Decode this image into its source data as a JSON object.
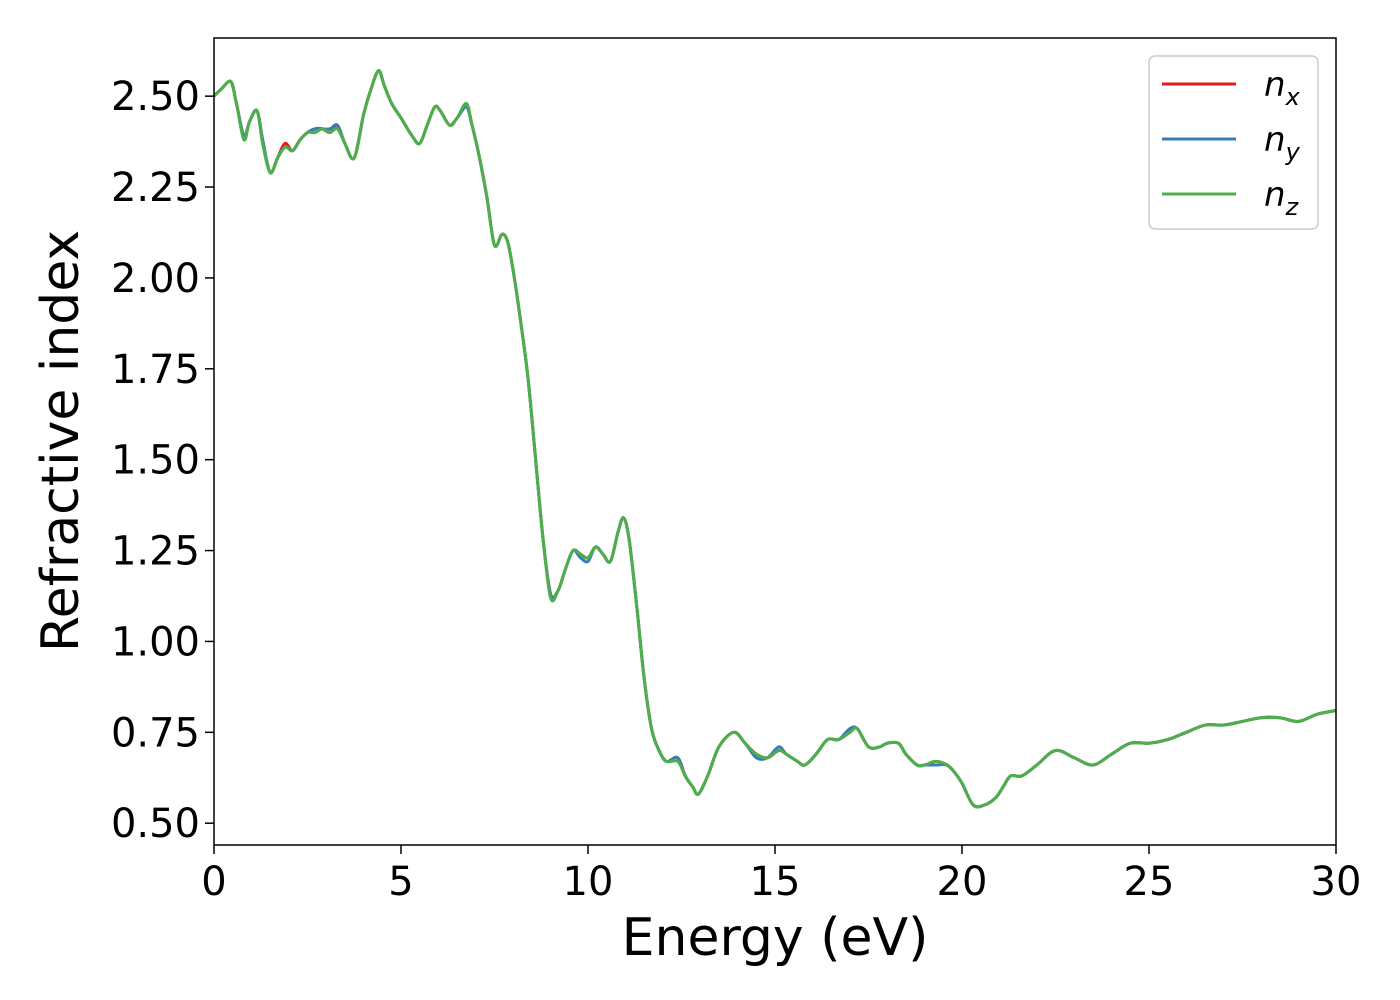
{
  "chart_data": {
    "type": "line",
    "title": "",
    "xlabel": "Energy (eV)",
    "ylabel": "Refractive index",
    "xlim": [
      0,
      30
    ],
    "ylim": [
      0.44,
      2.66
    ],
    "xticks": [
      0,
      5,
      10,
      15,
      20,
      25,
      30
    ],
    "yticks": [
      0.5,
      0.75,
      1.0,
      1.25,
      1.5,
      1.75,
      2.0,
      2.25,
      2.5
    ],
    "grid": false,
    "legend_position": "top-right",
    "x": [
      0,
      0.2,
      0.45,
      0.6,
      0.8,
      0.95,
      1.15,
      1.3,
      1.5,
      1.7,
      1.9,
      2.1,
      2.3,
      2.5,
      2.7,
      2.9,
      3.1,
      3.3,
      3.5,
      3.75,
      4.0,
      4.2,
      4.4,
      4.55,
      4.75,
      5.0,
      5.3,
      5.5,
      5.7,
      5.9,
      6.05,
      6.3,
      6.5,
      6.75,
      6.9,
      7.1,
      7.3,
      7.5,
      7.7,
      7.85,
      8.0,
      8.2,
      8.4,
      8.6,
      8.8,
      9.0,
      9.2,
      9.4,
      9.6,
      9.8,
      10.0,
      10.2,
      10.4,
      10.6,
      10.8,
      10.95,
      11.1,
      11.3,
      11.5,
      11.7,
      11.9,
      12.1,
      12.4,
      12.6,
      12.8,
      12.95,
      13.2,
      13.5,
      13.9,
      14.2,
      14.5,
      14.8,
      15.1,
      15.3,
      15.6,
      15.8,
      16.1,
      16.4,
      16.7,
      17.0,
      17.2,
      17.5,
      17.8,
      18.0,
      18.3,
      18.5,
      18.8,
      19.0,
      19.3,
      19.6,
      19.8,
      20.0,
      20.3,
      20.6,
      20.9,
      21.1,
      21.3,
      21.6,
      22.0,
      22.5,
      23.0,
      23.5,
      24.0,
      24.5,
      25.0,
      25.5,
      26.0,
      26.5,
      27.0,
      27.5,
      28.0,
      28.5,
      29.0,
      29.5,
      30.0
    ],
    "series": [
      {
        "name": "n_x",
        "label_base": "n",
        "label_sub": "x",
        "color": "#e41a1c",
        "y": [
          2.5,
          2.52,
          2.54,
          2.48,
          2.39,
          2.43,
          2.46,
          2.38,
          2.29,
          2.33,
          2.37,
          2.35,
          2.38,
          2.4,
          2.41,
          2.41,
          2.4,
          2.42,
          2.37,
          2.33,
          2.45,
          2.52,
          2.57,
          2.53,
          2.48,
          2.44,
          2.39,
          2.37,
          2.42,
          2.47,
          2.46,
          2.42,
          2.44,
          2.47,
          2.42,
          2.33,
          2.22,
          2.09,
          2.12,
          2.1,
          2.02,
          1.88,
          1.72,
          1.5,
          1.28,
          1.13,
          1.14,
          1.2,
          1.25,
          1.24,
          1.23,
          1.26,
          1.24,
          1.22,
          1.3,
          1.34,
          1.28,
          1.1,
          0.9,
          0.76,
          0.7,
          0.67,
          0.68,
          0.63,
          0.6,
          0.58,
          0.63,
          0.71,
          0.75,
          0.72,
          0.69,
          0.68,
          0.7,
          0.69,
          0.67,
          0.66,
          0.69,
          0.73,
          0.73,
          0.75,
          0.76,
          0.71,
          0.71,
          0.72,
          0.72,
          0.69,
          0.66,
          0.66,
          0.67,
          0.66,
          0.64,
          0.61,
          0.55,
          0.55,
          0.57,
          0.6,
          0.63,
          0.63,
          0.66,
          0.7,
          0.68,
          0.66,
          0.69,
          0.72,
          0.72,
          0.73,
          0.75,
          0.77,
          0.77,
          0.78,
          0.79,
          0.79,
          0.78,
          0.8,
          0.81
        ]
      },
      {
        "name": "n_y",
        "label_base": "n",
        "label_sub": "y",
        "color": "#377eb8",
        "y": [
          2.5,
          2.52,
          2.54,
          2.48,
          2.39,
          2.43,
          2.46,
          2.38,
          2.29,
          2.33,
          2.36,
          2.35,
          2.38,
          2.4,
          2.41,
          2.41,
          2.41,
          2.42,
          2.37,
          2.33,
          2.45,
          2.52,
          2.57,
          2.53,
          2.48,
          2.44,
          2.39,
          2.37,
          2.42,
          2.47,
          2.46,
          2.42,
          2.44,
          2.47,
          2.42,
          2.33,
          2.22,
          2.09,
          2.12,
          2.1,
          2.02,
          1.88,
          1.72,
          1.5,
          1.28,
          1.13,
          1.14,
          1.2,
          1.25,
          1.23,
          1.22,
          1.26,
          1.24,
          1.22,
          1.3,
          1.34,
          1.28,
          1.1,
          0.9,
          0.76,
          0.7,
          0.67,
          0.68,
          0.63,
          0.6,
          0.58,
          0.63,
          0.71,
          0.75,
          0.72,
          0.68,
          0.68,
          0.71,
          0.69,
          0.67,
          0.66,
          0.69,
          0.73,
          0.73,
          0.76,
          0.76,
          0.71,
          0.71,
          0.72,
          0.72,
          0.69,
          0.66,
          0.66,
          0.66,
          0.66,
          0.64,
          0.61,
          0.55,
          0.55,
          0.57,
          0.6,
          0.63,
          0.63,
          0.66,
          0.7,
          0.68,
          0.66,
          0.69,
          0.72,
          0.72,
          0.73,
          0.75,
          0.77,
          0.77,
          0.78,
          0.79,
          0.79,
          0.78,
          0.8,
          0.81
        ]
      },
      {
        "name": "n_z",
        "label_base": "n",
        "label_sub": "z",
        "color": "#4daf4a",
        "y": [
          2.5,
          2.52,
          2.54,
          2.48,
          2.38,
          2.43,
          2.46,
          2.37,
          2.29,
          2.33,
          2.36,
          2.35,
          2.38,
          2.4,
          2.4,
          2.41,
          2.4,
          2.41,
          2.37,
          2.33,
          2.45,
          2.52,
          2.57,
          2.53,
          2.48,
          2.44,
          2.39,
          2.37,
          2.42,
          2.47,
          2.46,
          2.42,
          2.44,
          2.48,
          2.42,
          2.33,
          2.22,
          2.09,
          2.12,
          2.1,
          2.02,
          1.88,
          1.72,
          1.5,
          1.28,
          1.12,
          1.14,
          1.2,
          1.25,
          1.24,
          1.23,
          1.26,
          1.24,
          1.22,
          1.3,
          1.34,
          1.28,
          1.1,
          0.9,
          0.76,
          0.7,
          0.67,
          0.67,
          0.63,
          0.6,
          0.58,
          0.63,
          0.71,
          0.75,
          0.72,
          0.69,
          0.68,
          0.7,
          0.69,
          0.67,
          0.66,
          0.69,
          0.73,
          0.73,
          0.75,
          0.76,
          0.71,
          0.71,
          0.72,
          0.72,
          0.69,
          0.66,
          0.66,
          0.67,
          0.66,
          0.64,
          0.61,
          0.55,
          0.55,
          0.57,
          0.6,
          0.63,
          0.63,
          0.66,
          0.7,
          0.68,
          0.66,
          0.69,
          0.72,
          0.72,
          0.73,
          0.75,
          0.77,
          0.77,
          0.78,
          0.79,
          0.79,
          0.78,
          0.8,
          0.81
        ]
      }
    ]
  }
}
